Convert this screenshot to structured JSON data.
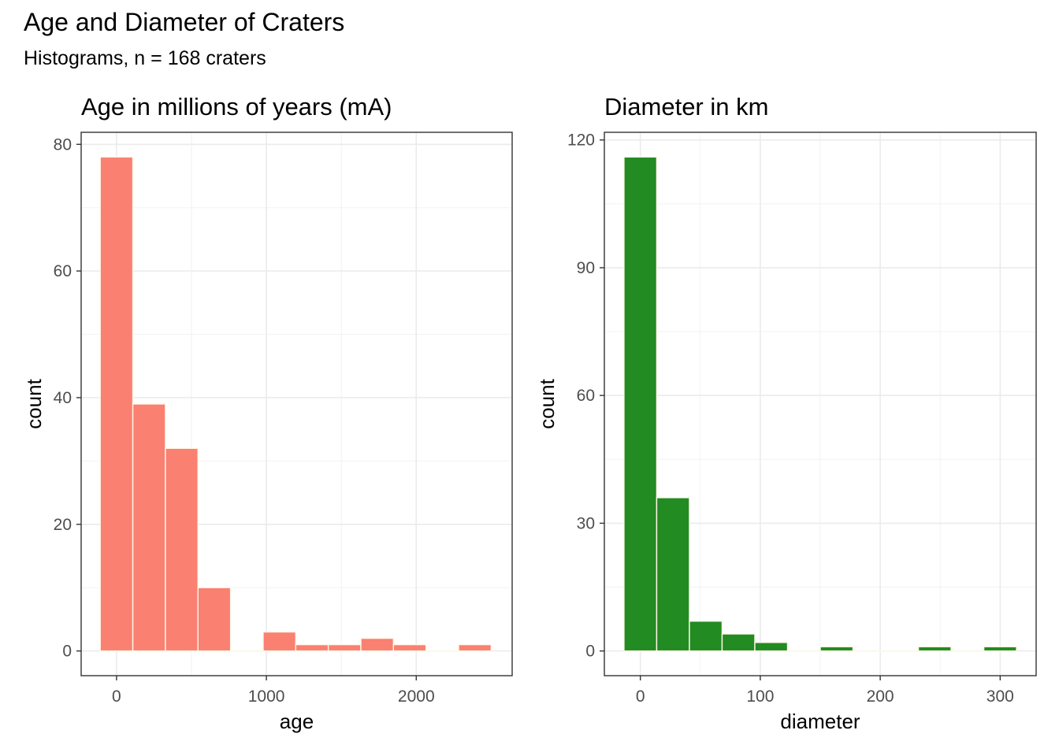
{
  "title": "Age and Diameter of Craters",
  "subtitle": "Histograms, n = 168 craters",
  "chart_data": [
    {
      "type": "bar",
      "title": "Age in millions of years (mA)",
      "xlabel": "age",
      "ylabel": "count",
      "color": "#FA8072",
      "border_color": "#FFF8E7",
      "bin_width": 217.4,
      "bin_centers": [
        0,
        217.4,
        434.8,
        652.2,
        869.6,
        1087,
        1304.3,
        1521.7,
        1739.1,
        1956.5,
        2173.9,
        2391.3
      ],
      "values": [
        78,
        39,
        32,
        10,
        0,
        3,
        1,
        1,
        2,
        1,
        0,
        1
      ],
      "xlim": [
        -236,
        2640
      ],
      "ylim": [
        -3.9,
        81.9
      ],
      "xticks": [
        0,
        1000,
        2000
      ],
      "yticks": [
        0,
        20,
        40,
        60,
        80
      ],
      "grid": true
    },
    {
      "type": "bar",
      "title": "Diameter in km",
      "xlabel": "diameter",
      "ylabel": "count",
      "color": "#228B22",
      "border_color": "#FFF8E7",
      "bin_width": 27.27,
      "bin_centers": [
        0,
        27.27,
        54.55,
        81.82,
        109.09,
        136.36,
        163.64,
        190.91,
        218.18,
        245.45,
        272.73,
        300
      ],
      "values": [
        116,
        36,
        7,
        4,
        2,
        0,
        1,
        0,
        0,
        1,
        0,
        1
      ],
      "xlim": [
        -30,
        330
      ],
      "ylim": [
        -5.8,
        121.8
      ],
      "xticks": [
        0,
        100,
        200,
        300
      ],
      "yticks": [
        0,
        30,
        60,
        90,
        120
      ],
      "grid": true
    }
  ]
}
